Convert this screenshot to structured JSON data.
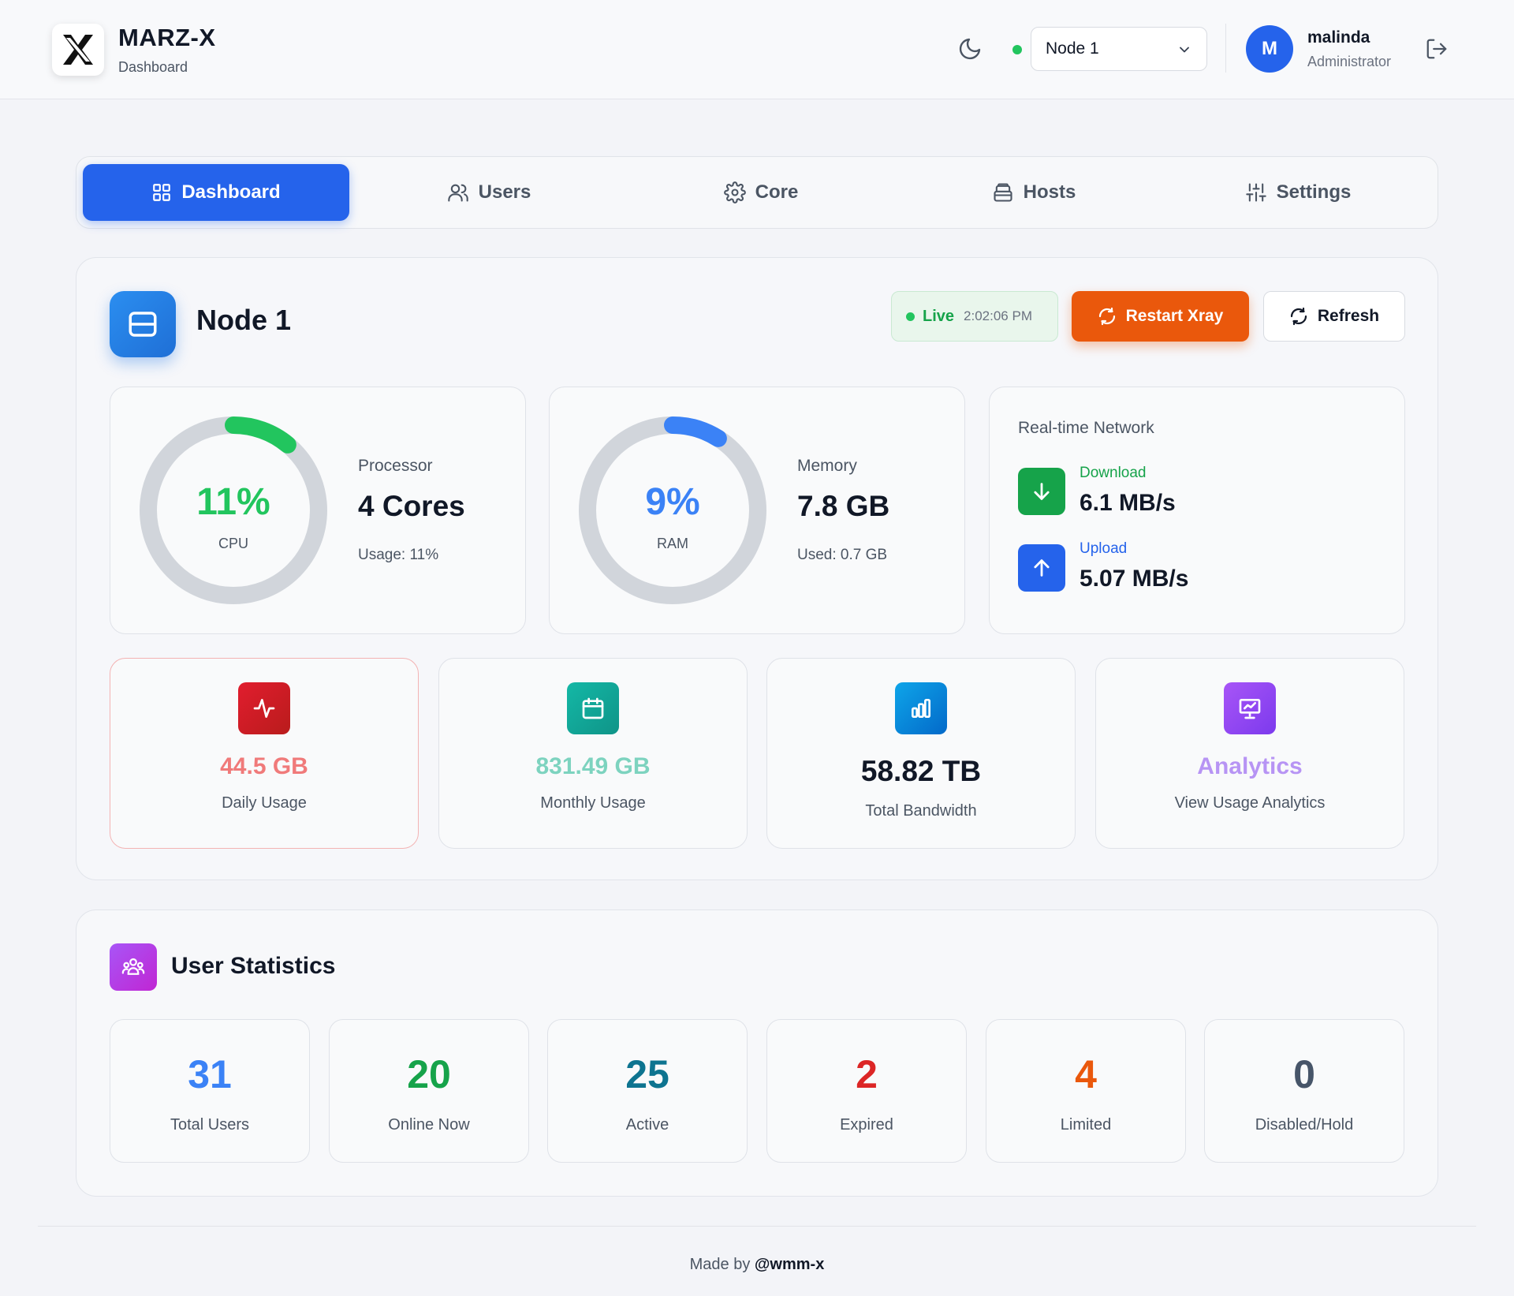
{
  "header": {
    "app_name": "MARZ-X",
    "app_subtitle": "Dashboard",
    "logo_letter": "X",
    "node_selector": {
      "selected": "Node 1",
      "status_color": "#22c55e"
    },
    "user": {
      "initial": "M",
      "name": "malinda",
      "role": "Administrator"
    }
  },
  "nav": {
    "tabs": [
      {
        "label": "Dashboard",
        "icon": "grid-icon",
        "active": true
      },
      {
        "label": "Users",
        "icon": "users-icon",
        "active": false
      },
      {
        "label": "Core",
        "icon": "gear-icon",
        "active": false
      },
      {
        "label": "Hosts",
        "icon": "hosts-icon",
        "active": false
      },
      {
        "label": "Settings",
        "icon": "sliders-icon",
        "active": false
      }
    ]
  },
  "node": {
    "title": "Node 1",
    "live_label": "Live",
    "live_time": "2:02:06 PM",
    "restart_label": "Restart Xray",
    "refresh_label": "Refresh",
    "cpu": {
      "percent": 11,
      "value_text": "11%",
      "gauge_label": "CPU",
      "caption": "Processor",
      "big": "4 Cores",
      "small": "Usage: 11%",
      "color": "#22c55e"
    },
    "ram": {
      "percent": 9,
      "value_text": "9%",
      "gauge_label": "RAM",
      "caption": "Memory",
      "big": "7.8 GB",
      "small": "Used: 0.7 GB",
      "color": "#3b82f6"
    },
    "network": {
      "title": "Real-time Network",
      "download": {
        "label": "Download",
        "value": "6.1 MB/s",
        "color": "#16a34a"
      },
      "upload": {
        "label": "Upload",
        "value": "5.07 MB/s",
        "color": "#2563eb"
      }
    },
    "usage_cards": [
      {
        "value": "44.5 GB",
        "label": "Daily Usage",
        "icon": "activity-icon",
        "color": "#f07a7a"
      },
      {
        "value": "831.49 GB",
        "label": "Monthly Usage",
        "icon": "calendar-icon",
        "color": "#7dd3bf"
      },
      {
        "value": "58.82 TB",
        "label": "Total Bandwidth",
        "icon": "bar-chart-icon",
        "color": "#111827"
      },
      {
        "value": "Analytics",
        "label": "View Usage Analytics",
        "icon": "presentation-chart-icon",
        "color": "#b794f4"
      }
    ]
  },
  "user_stats": {
    "title": "User Statistics",
    "cards": [
      {
        "value": "31",
        "label": "Total Users",
        "color": "#3b82f6"
      },
      {
        "value": "20",
        "label": "Online Now",
        "color": "#16a34a"
      },
      {
        "value": "25",
        "label": "Active",
        "color": "#0e7490"
      },
      {
        "value": "2",
        "label": "Expired",
        "color": "#dc2626"
      },
      {
        "value": "4",
        "label": "Limited",
        "color": "#ea580c"
      },
      {
        "value": "0",
        "label": "Disabled/Hold",
        "color": "#475569"
      }
    ]
  },
  "footer": {
    "prefix": "Made by",
    "author": "@wmm-x"
  }
}
